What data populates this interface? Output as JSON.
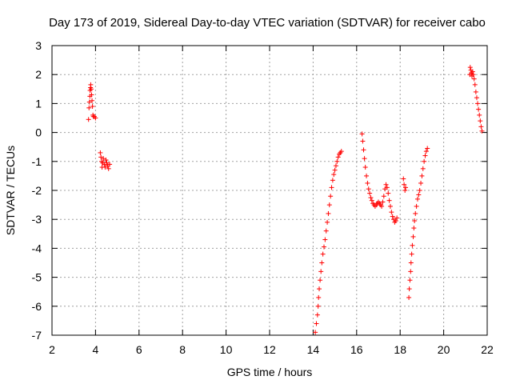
{
  "chart_data": {
    "type": "scatter",
    "title": "Day 173 of 2019, Sidereal Day-to-day VTEC variation (SDTVAR) for receiver cabo",
    "xlabel": "GPS time / hours",
    "ylabel": "SDTVAR / TECUs",
    "xlim": [
      2,
      22
    ],
    "ylim": [
      -7,
      3
    ],
    "xticks": [
      2,
      4,
      6,
      8,
      10,
      12,
      14,
      16,
      18,
      20,
      22
    ],
    "yticks": [
      -7,
      -6,
      -5,
      -4,
      -3,
      -2,
      -1,
      0,
      1,
      2,
      3
    ],
    "grid": true,
    "marker": "plus",
    "color": "#ff0000",
    "series": [
      {
        "name": "cabo",
        "points": [
          [
            3.68,
            0.45
          ],
          [
            3.7,
            0.85
          ],
          [
            3.72,
            1.05
          ],
          [
            3.74,
            1.25
          ],
          [
            3.75,
            1.45
          ],
          [
            3.77,
            1.55
          ],
          [
            3.78,
            1.65
          ],
          [
            3.8,
            1.5
          ],
          [
            3.82,
            1.3
          ],
          [
            3.84,
            1.1
          ],
          [
            3.86,
            0.9
          ],
          [
            3.88,
            0.6
          ],
          [
            3.9,
            0.55
          ],
          [
            3.95,
            0.55
          ],
          [
            4.0,
            0.5
          ],
          [
            4.22,
            -0.7
          ],
          [
            4.25,
            -0.85
          ],
          [
            4.28,
            -1.0
          ],
          [
            4.3,
            -1.2
          ],
          [
            4.33,
            -1.05
          ],
          [
            4.36,
            -0.9
          ],
          [
            4.4,
            -1.1
          ],
          [
            4.44,
            -1.2
          ],
          [
            4.48,
            -0.95
          ],
          [
            4.52,
            -1.05
          ],
          [
            4.56,
            -1.15
          ],
          [
            4.6,
            -1.25
          ],
          [
            4.65,
            -1.1
          ],
          [
            14.1,
            -6.9
          ],
          [
            14.15,
            -6.6
          ],
          [
            14.2,
            -6.3
          ],
          [
            14.23,
            -6.0
          ],
          [
            14.25,
            -5.7
          ],
          [
            14.28,
            -5.4
          ],
          [
            14.32,
            -5.1
          ],
          [
            14.36,
            -4.8
          ],
          [
            14.4,
            -4.5
          ],
          [
            14.45,
            -4.2
          ],
          [
            14.5,
            -3.95
          ],
          [
            14.55,
            -3.7
          ],
          [
            14.6,
            -3.4
          ],
          [
            14.65,
            -3.1
          ],
          [
            14.7,
            -2.8
          ],
          [
            14.75,
            -2.5
          ],
          [
            14.8,
            -2.2
          ],
          [
            14.85,
            -1.9
          ],
          [
            14.9,
            -1.65
          ],
          [
            14.95,
            -1.45
          ],
          [
            15.0,
            -1.3
          ],
          [
            15.05,
            -1.15
          ],
          [
            15.1,
            -1.0
          ],
          [
            15.15,
            -0.85
          ],
          [
            15.2,
            -0.75
          ],
          [
            15.25,
            -0.7
          ],
          [
            15.3,
            -0.65
          ],
          [
            16.25,
            -0.05
          ],
          [
            16.28,
            -0.3
          ],
          [
            16.32,
            -0.6
          ],
          [
            16.36,
            -0.9
          ],
          [
            16.4,
            -1.2
          ],
          [
            16.45,
            -1.5
          ],
          [
            16.5,
            -1.75
          ],
          [
            16.55,
            -1.95
          ],
          [
            16.6,
            -2.1
          ],
          [
            16.65,
            -2.25
          ],
          [
            16.7,
            -2.35
          ],
          [
            16.75,
            -2.45
          ],
          [
            16.8,
            -2.5
          ],
          [
            16.85,
            -2.55
          ],
          [
            16.9,
            -2.5
          ],
          [
            16.95,
            -2.45
          ],
          [
            17.0,
            -2.4
          ],
          [
            17.05,
            -2.45
          ],
          [
            17.1,
            -2.5
          ],
          [
            17.15,
            -2.55
          ],
          [
            17.2,
            -2.4
          ],
          [
            17.25,
            -2.2
          ],
          [
            17.3,
            -1.95
          ],
          [
            17.35,
            -1.8
          ],
          [
            17.4,
            -1.9
          ],
          [
            17.45,
            -2.1
          ],
          [
            17.5,
            -2.35
          ],
          [
            17.55,
            -2.55
          ],
          [
            17.6,
            -2.75
          ],
          [
            17.65,
            -2.9
          ],
          [
            17.7,
            -3.0
          ],
          [
            17.75,
            -3.1
          ],
          [
            17.8,
            -3.05
          ],
          [
            17.85,
            -2.95
          ],
          [
            18.15,
            -1.6
          ],
          [
            18.18,
            -1.8
          ],
          [
            18.22,
            -2.0
          ],
          [
            18.25,
            -1.9
          ],
          [
            18.4,
            -5.7
          ],
          [
            18.42,
            -5.4
          ],
          [
            18.45,
            -5.1
          ],
          [
            18.48,
            -4.8
          ],
          [
            18.5,
            -4.5
          ],
          [
            18.53,
            -4.2
          ],
          [
            18.56,
            -3.9
          ],
          [
            18.6,
            -3.6
          ],
          [
            18.63,
            -3.3
          ],
          [
            18.66,
            -3.05
          ],
          [
            18.7,
            -2.8
          ],
          [
            18.75,
            -2.55
          ],
          [
            18.8,
            -2.3
          ],
          [
            18.85,
            -2.15
          ],
          [
            18.9,
            -2.0
          ],
          [
            18.95,
            -1.75
          ],
          [
            19.0,
            -1.5
          ],
          [
            19.05,
            -1.25
          ],
          [
            19.1,
            -1.0
          ],
          [
            19.15,
            -0.8
          ],
          [
            19.2,
            -0.65
          ],
          [
            19.25,
            -0.55
          ],
          [
            21.2,
            2.0
          ],
          [
            21.22,
            2.25
          ],
          [
            21.25,
            2.15
          ],
          [
            21.28,
            2.05
          ],
          [
            21.3,
            1.95
          ],
          [
            21.33,
            2.1
          ],
          [
            21.36,
            2.0
          ],
          [
            21.4,
            1.85
          ],
          [
            21.44,
            1.65
          ],
          [
            21.48,
            1.4
          ],
          [
            21.52,
            1.2
          ],
          [
            21.56,
            1.0
          ],
          [
            21.6,
            0.8
          ],
          [
            21.64,
            0.6
          ],
          [
            21.68,
            0.4
          ],
          [
            21.72,
            0.2
          ],
          [
            21.76,
            0.05
          ]
        ]
      }
    ]
  }
}
